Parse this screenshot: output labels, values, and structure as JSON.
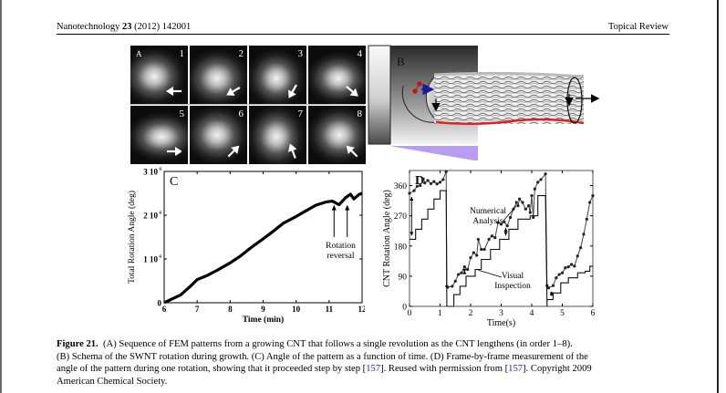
{
  "header": {
    "journal": "Nanotechnology",
    "volume": "23",
    "year_article": "(2012) 142001",
    "section": "Topical Review"
  },
  "figure": {
    "panel_a": {
      "label": "A",
      "frames": [
        {
          "num": "1",
          "arrow_direction": "left"
        },
        {
          "num": "2",
          "arrow_direction": "down-left"
        },
        {
          "num": "3",
          "arrow_direction": "down-left-steep"
        },
        {
          "num": "4",
          "arrow_direction": "down-right"
        },
        {
          "num": "5",
          "arrow_direction": "right"
        },
        {
          "num": "6",
          "arrow_direction": "up-right"
        },
        {
          "num": "7",
          "arrow_direction": "up-left-steep"
        },
        {
          "num": "8",
          "arrow_direction": "up-left"
        }
      ]
    },
    "panel_b": {
      "label": "B",
      "colors": {
        "rotation_arrow": "#1a1a9a",
        "atoms": "#cc1111",
        "edge": "#e02020",
        "base": "#b89cf0"
      }
    }
  },
  "chart_data": [
    {
      "panel": "C",
      "type": "line",
      "title": "C",
      "xlabel": "Time (min)",
      "ylabel": "Total Rotation Angle (deg)",
      "xlim": [
        6,
        12
      ],
      "ylim": [
        0,
        30000
      ],
      "xticks": [
        "6",
        "7",
        "8",
        "9",
        "10",
        "11",
        "12"
      ],
      "yticks": [
        {
          "value": 0,
          "label": "0"
        },
        {
          "value": 10000,
          "label": "1 10",
          "exp": "4"
        },
        {
          "value": 20000,
          "label": "2 10",
          "exp": "4"
        },
        {
          "value": 30000,
          "label": "3 10",
          "exp": "4"
        }
      ],
      "series": [
        {
          "name": "Total rotation",
          "x": [
            6.0,
            6.2,
            6.5,
            6.8,
            7.0,
            7.3,
            7.6,
            8.0,
            8.3,
            8.6,
            9.0,
            9.3,
            9.6,
            10.0,
            10.3,
            10.6,
            10.9,
            11.1,
            11.3,
            11.5,
            11.65,
            11.75,
            11.9,
            12.0
          ],
          "y": [
            0,
            700,
            1800,
            3800,
            5300,
            6200,
            7400,
            9100,
            10600,
            12400,
            14600,
            16300,
            18100,
            19700,
            21000,
            22300,
            23000,
            23200,
            22400,
            24000,
            24800,
            23700,
            24700,
            25000
          ]
        }
      ],
      "annotations": [
        {
          "text_line1": "Rotation",
          "text_line2": "reversal",
          "arrows_at_x": [
            11.15,
            11.55
          ]
        }
      ],
      "grid": false
    },
    {
      "panel": "D",
      "type": "line",
      "title": "D",
      "xlabel": "Time(s)",
      "ylabel": "CNT Rotation Angle (deg)",
      "xlim": [
        0,
        6
      ],
      "ylim": [
        0,
        405
      ],
      "xticks": [
        "0",
        "1",
        "2",
        "3",
        "4",
        "5",
        "6"
      ],
      "yticks": [
        {
          "value": 0,
          "label": "0"
        },
        {
          "value": 90,
          "label": "90"
        },
        {
          "value": 180,
          "label": "180"
        },
        {
          "value": 270,
          "label": "270"
        },
        {
          "value": 360,
          "label": "360"
        }
      ],
      "series": [
        {
          "name": "Numerical Analysis",
          "x": [
            0,
            0.15,
            0.25,
            0.35,
            0.45,
            0.5,
            0.6,
            0.7,
            0.8,
            0.9,
            1.0,
            1.1,
            1.2,
            1.22,
            1.25,
            1.4,
            1.5,
            1.6,
            1.7,
            1.8,
            1.9,
            2.0,
            2.1,
            2.2,
            2.25,
            2.35,
            2.45,
            2.6,
            2.7,
            2.8,
            2.9,
            3.0,
            3.1,
            3.2,
            3.3,
            3.4,
            3.5,
            3.55,
            3.6,
            3.7,
            3.8,
            3.9,
            3.95,
            4.0,
            4.05,
            4.1,
            4.2,
            4.3,
            4.45,
            4.5,
            4.55,
            4.7,
            4.8,
            4.9,
            5.0,
            5.1,
            5.2,
            5.3,
            5.4,
            5.5,
            5.6,
            5.7,
            5.8,
            5.9,
            6.0
          ],
          "y": [
            337,
            345,
            358,
            360,
            380,
            368,
            375,
            366,
            372,
            365,
            370,
            378,
            402,
            60,
            57,
            60,
            75,
            95,
            100,
            118,
            110,
            145,
            160,
            152,
            200,
            170,
            170,
            200,
            210,
            205,
            250,
            245,
            252,
            240,
            265,
            290,
            310,
            300,
            320,
            310,
            290,
            300,
            280,
            330,
            265,
            350,
            370,
            378,
            395,
            62,
            55,
            62,
            85,
            95,
            100,
            115,
            118,
            125,
            120,
            150,
            175,
            215,
            260,
            310,
            330
          ]
        },
        {
          "name": "Visual Inspection",
          "x": [
            0,
            0.2,
            0.2,
            0.4,
            0.4,
            0.6,
            0.6,
            0.8,
            0.8,
            1.0,
            1.0,
            1.2,
            1.22,
            1.25,
            1.4,
            1.45,
            1.45,
            1.65,
            1.65,
            1.85,
            1.85,
            2.15,
            2.15,
            2.35,
            2.35,
            2.65,
            2.65,
            2.95,
            2.95,
            3.25,
            3.25,
            3.55,
            3.55,
            3.95,
            3.95,
            4.2,
            4.2,
            4.45,
            4.5,
            4.5,
            4.7,
            4.7,
            4.95,
            4.95,
            5.2,
            5.2,
            5.5,
            5.5,
            5.75,
            5.75,
            5.9,
            5.9,
            6.0
          ],
          "y": [
            200,
            200,
            230,
            230,
            260,
            260,
            290,
            290,
            320,
            320,
            345,
            345,
            0,
            0,
            0,
            0,
            35,
            35,
            60,
            60,
            90,
            90,
            110,
            110,
            140,
            140,
            170,
            170,
            200,
            200,
            230,
            230,
            260,
            260,
            270,
            270,
            330,
            330,
            0,
            20,
            20,
            40,
            40,
            70,
            70,
            85,
            85,
            100,
            100,
            105,
            105,
            120,
            120
          ]
        }
      ],
      "annotations": [
        {
          "text_line1": "Numerical",
          "text_line2": "Analysis"
        },
        {
          "text_line1": "Visual",
          "text_line2": "Inspection"
        }
      ],
      "grid": false
    }
  ],
  "caption": {
    "label": "Figure 21.",
    "line1": "(A) Sequence of FEM patterns from a growing CNT that follows a single revolution as the CNT lengthens (in order 1–8).",
    "line2": "(B) Schema of the SWNT rotation during growth. (C) Angle of the pattern as a function of time. (D) Frame-by-frame measurement of the",
    "line3_pre": "angle of the pattern during one rotation, showing that it proceeded step by step [",
    "ref1": "157",
    "line3_mid": "]. Reused with permission from [",
    "ref2": "157",
    "line3_post": "]. Copyright 2009",
    "line4": "American Chemical Society."
  }
}
